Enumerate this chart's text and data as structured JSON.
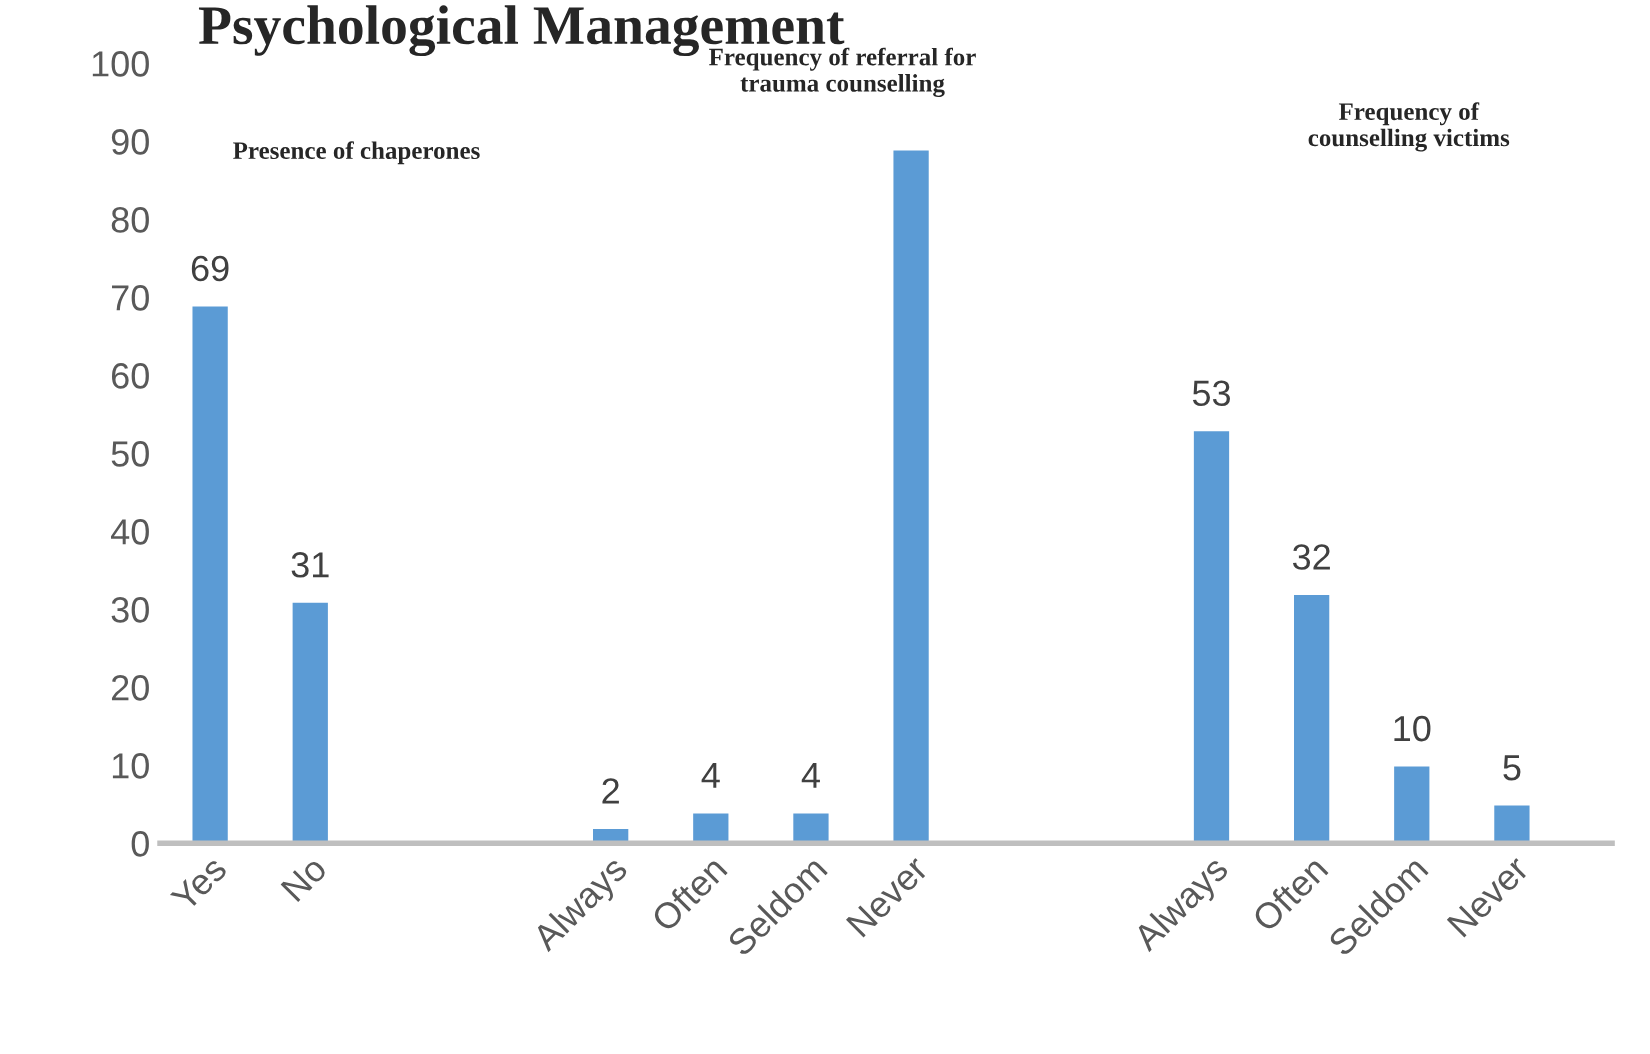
{
  "chart_data": {
    "type": "bar",
    "title": "Psychological Management",
    "categories": [
      "Yes",
      "No",
      null,
      null,
      "Always",
      "Often",
      "Seldom",
      "Never",
      null,
      null,
      "Always",
      "Often",
      "Seldom",
      "Never"
    ],
    "values": [
      69,
      31,
      null,
      null,
      2,
      4,
      4,
      89,
      null,
      null,
      53,
      32,
      10,
      5
    ],
    "value_labels": [
      "69",
      "31",
      null,
      null,
      "2",
      "4",
      "4",
      null,
      null,
      null,
      "53",
      "32",
      "10",
      "5"
    ],
    "color": "#5b9bd5",
    "ylim": [
      0,
      100
    ],
    "yticks": [
      0,
      10,
      20,
      30,
      40,
      50,
      60,
      70,
      80,
      90,
      100
    ],
    "grid": false,
    "annotations": [
      "Presence of chaperones",
      "Frequency of referral for\ntrauma counselling",
      "Frequency of\ncounselling victims"
    ]
  }
}
